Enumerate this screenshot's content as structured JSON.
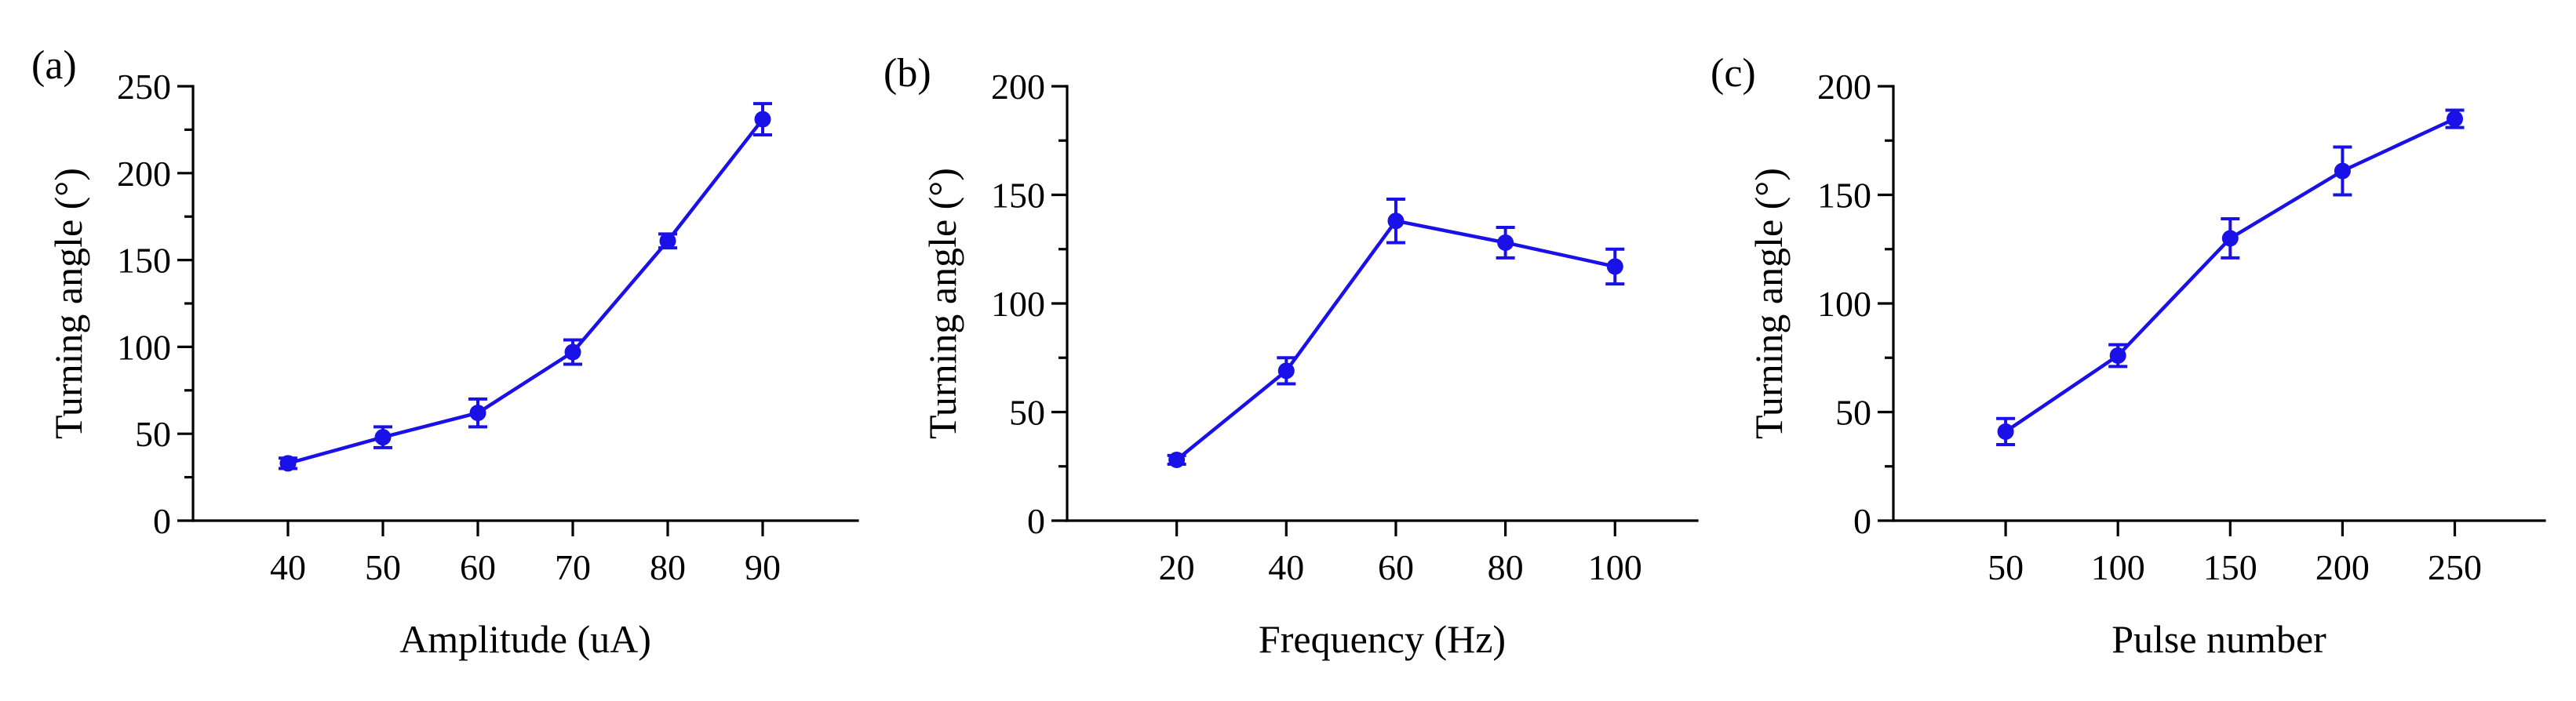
{
  "figure": {
    "series_color": "#1a10e8",
    "axis_color": "#000000"
  },
  "chart_data": [
    {
      "type": "line",
      "panel_label": "(a)",
      "title": "",
      "xlabel": "Amplitude (uA)",
      "ylabel": "Turning angle (°)",
      "x": [
        40,
        50,
        60,
        70,
        80,
        90
      ],
      "values": [
        33,
        48,
        62,
        97,
        161,
        231
      ],
      "errors": [
        3,
        6,
        8,
        7,
        4,
        9
      ],
      "xlim": [
        30,
        100
      ],
      "ylim": [
        0,
        250
      ],
      "xticks": [
        40,
        50,
        60,
        70,
        80,
        90
      ],
      "xtick_labels": [
        "40",
        "50",
        "60",
        "70",
        "80",
        "90"
      ],
      "yticks": [
        0,
        50,
        100,
        150,
        200,
        250
      ],
      "ytick_labels": [
        "0",
        "50",
        "100",
        "150",
        "200",
        "250"
      ],
      "marker": "circle",
      "legend": "none"
    },
    {
      "type": "line",
      "panel_label": "(b)",
      "title": "",
      "xlabel": "Frequency (Hz)",
      "ylabel": "Turning angle (°)",
      "x": [
        20,
        40,
        60,
        80,
        100
      ],
      "values": [
        28,
        69,
        138,
        128,
        117
      ],
      "errors": [
        2,
        6,
        10,
        7,
        8
      ],
      "xlim": [
        0,
        115
      ],
      "ylim": [
        0,
        200
      ],
      "xticks": [
        20,
        40,
        60,
        80,
        100
      ],
      "xtick_labels": [
        "20",
        "40",
        "60",
        "80",
        "100"
      ],
      "yticks": [
        0,
        50,
        100,
        150,
        200
      ],
      "ytick_labels": [
        "0",
        "50",
        "100",
        "150",
        "200"
      ],
      "marker": "circle",
      "legend": "none"
    },
    {
      "type": "line",
      "panel_label": "(c)",
      "title": "",
      "xlabel": "Pulse number",
      "ylabel": "Turning angle (°)",
      "x": [
        50,
        100,
        150,
        200,
        250
      ],
      "values": [
        41,
        76,
        130,
        161,
        185
      ],
      "errors": [
        6,
        5,
        9,
        11,
        4
      ],
      "xlim": [
        0,
        290
      ],
      "ylim": [
        0,
        200
      ],
      "xticks": [
        50,
        100,
        150,
        200,
        250
      ],
      "xtick_labels": [
        "50",
        "100",
        "150",
        "200",
        "250"
      ],
      "yticks": [
        0,
        50,
        100,
        150,
        200
      ],
      "ytick_labels": [
        "0",
        "50",
        "100",
        "150",
        "200"
      ],
      "marker": "circle",
      "legend": "none"
    }
  ]
}
